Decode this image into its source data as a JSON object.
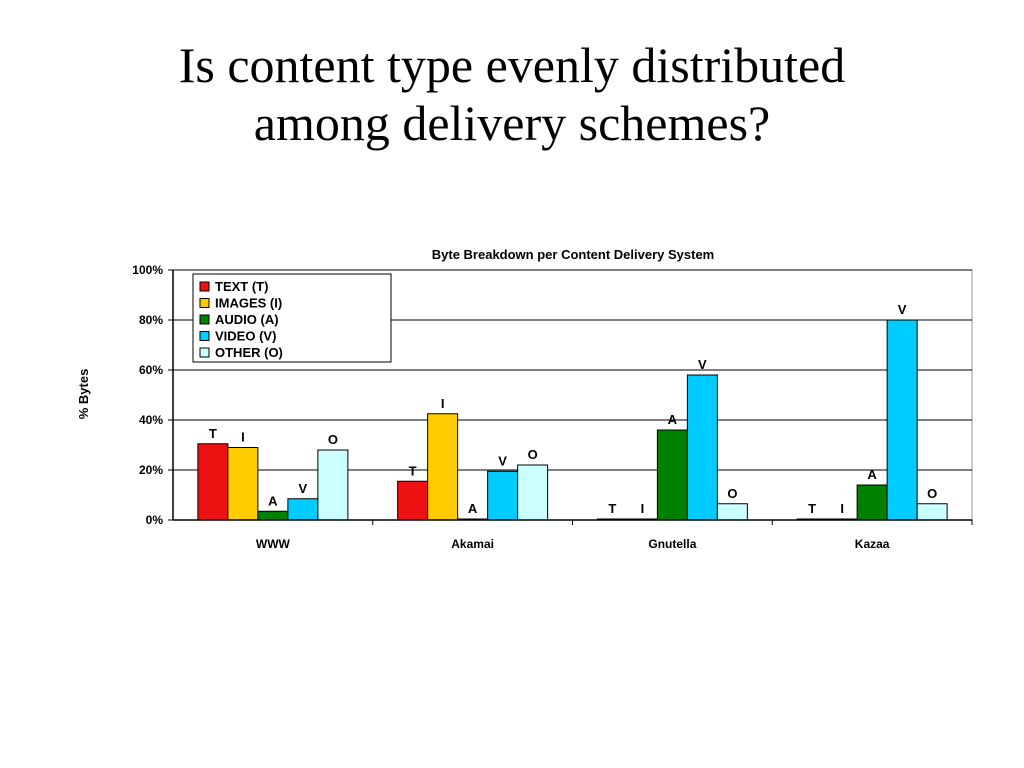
{
  "slide": {
    "title_line1": "Is content type evenly distributed",
    "title_line2": "among delivery schemes?"
  },
  "chart_data": {
    "type": "bar",
    "title": "Byte Breakdown per Content Delivery System",
    "ylabel": "% Bytes",
    "xlabel": "",
    "ylim": [
      0,
      100
    ],
    "yticks": [
      0,
      20,
      40,
      60,
      80,
      100
    ],
    "ytick_labels": [
      "0%",
      "20%",
      "40%",
      "60%",
      "80%",
      "100%"
    ],
    "grid": true,
    "legend_position": "top-left",
    "categories": [
      "WWW",
      "Akamai",
      "Gnutella",
      "Kazaa"
    ],
    "series": [
      {
        "name": "TEXT (T)",
        "label": "T",
        "color": "#ee1111",
        "values": [
          30.5,
          15.5,
          0.2,
          0.2
        ]
      },
      {
        "name": "IMAGES (I)",
        "label": "I",
        "color": "#ffcc00",
        "values": [
          29,
          42.5,
          0.2,
          0.2
        ]
      },
      {
        "name": "AUDIO (A)",
        "label": "A",
        "color": "#008000",
        "values": [
          3.5,
          0.3,
          36,
          14
        ]
      },
      {
        "name": "VIDEO (V)",
        "label": "V",
        "color": "#00ccff",
        "values": [
          8.5,
          19.5,
          58,
          80
        ]
      },
      {
        "name": "OTHER (O)",
        "label": "O",
        "color": "#ccffff",
        "values": [
          28,
          22,
          6.5,
          6.5
        ]
      }
    ]
  }
}
